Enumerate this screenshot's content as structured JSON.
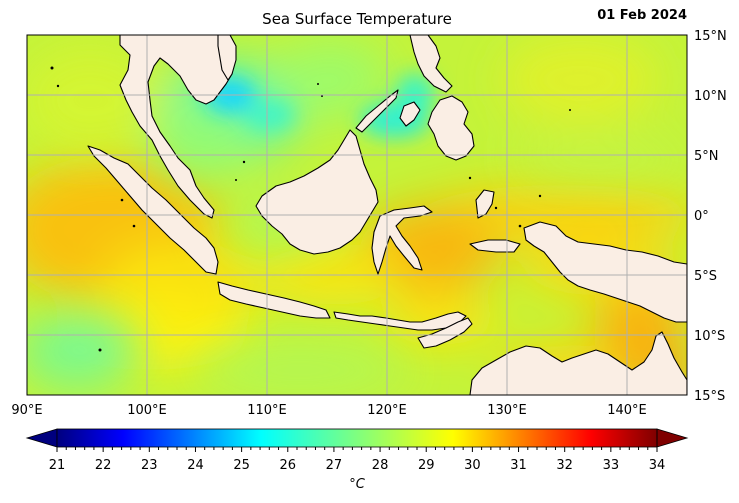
{
  "title": "Sea Surface Temperature",
  "date": "01 Feb 2024",
  "map": {
    "lon_ticks": [
      "90°E",
      "100°E",
      "110°E",
      "120°E",
      "130°E",
      "140°E"
    ],
    "lat_ticks": [
      "15°N",
      "10°N",
      "5°N",
      "0°",
      "5°S",
      "10°S",
      "15°S"
    ],
    "extent": {
      "lon": [
        90,
        145
      ],
      "lat": [
        -15,
        15
      ]
    },
    "grid": true,
    "land_color": "#faeee4",
    "coast_color": "#000000"
  },
  "colorbar": {
    "label": "°C",
    "ticks": [
      "21",
      "22",
      "23",
      "24",
      "25",
      "26",
      "27",
      "28",
      "29",
      "30",
      "31",
      "32",
      "33",
      "34"
    ],
    "range": [
      21,
      34
    ],
    "colormap": "jet",
    "extend": "both"
  }
}
